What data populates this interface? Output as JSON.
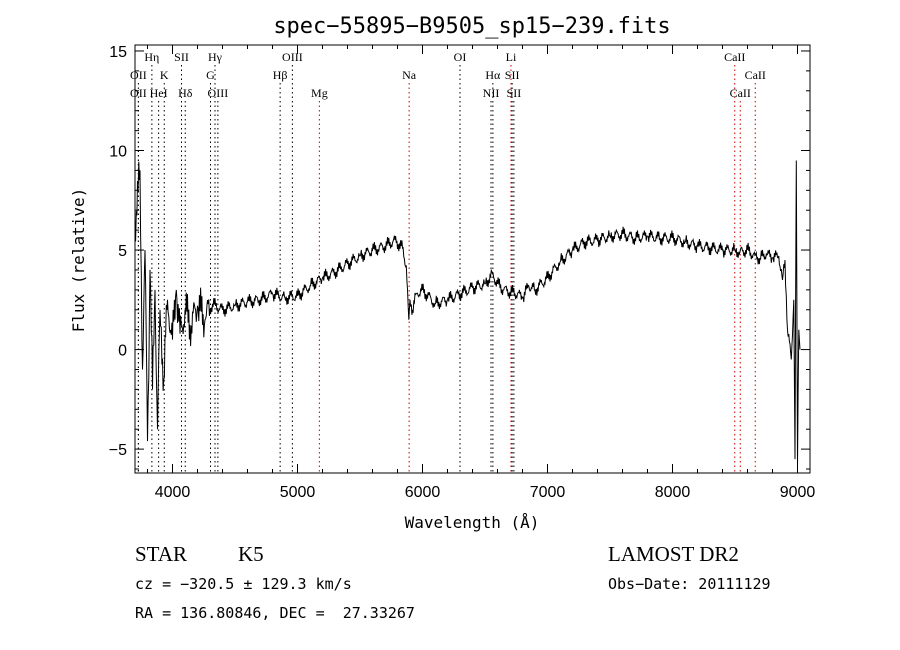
{
  "chart_data": {
    "type": "line",
    "title": "spec−55895−B9505_sp15−239.fits",
    "xlabel": "Wavelength (Å)",
    "ylabel": "Flux (relative)",
    "xlim": [
      3700,
      9100
    ],
    "ylim": [
      -6.2,
      15.3
    ],
    "x_ticks": [
      4000,
      5000,
      6000,
      7000,
      8000,
      9000
    ],
    "y_ticks": [
      -5,
      0,
      5,
      10,
      15
    ],
    "series": [
      {
        "color": "#000000",
        "x": [
          3700,
          3740,
          3760,
          3780,
          3800,
          3820,
          3840,
          3860,
          3880,
          3900,
          3930,
          3960,
          4000,
          4030,
          4060,
          4100,
          4150,
          4200,
          4260,
          4320,
          4400,
          4500,
          4600,
          4700,
          4800,
          4900,
          5000,
          5100,
          5200,
          5300,
          5400,
          5500,
          5600,
          5700,
          5780,
          5840,
          5870,
          5890,
          5900,
          5920,
          5950,
          6000,
          6100,
          6200,
          6300,
          6400,
          6500,
          6560,
          6600,
          6650,
          6700,
          6760,
          6800,
          6850,
          6900,
          7000,
          7100,
          7200,
          7300,
          7400,
          7500,
          7600,
          7700,
          7800,
          7900,
          8000,
          8100,
          8200,
          8300,
          8400,
          8500,
          8540,
          8600,
          8660,
          8700,
          8750,
          8800,
          8850,
          8880,
          8900,
          8920,
          8950,
          8970,
          8980,
          8990,
          9000,
          9010,
          9020
        ],
        "values": [
          6,
          9,
          -1,
          5,
          -4.6,
          4,
          -2,
          3,
          -4,
          2,
          -1.5,
          2.5,
          0.5,
          3,
          0.8,
          2,
          1.2,
          2.2,
          1.5,
          2.3,
          2,
          2.2,
          2.4,
          2.5,
          2.8,
          2.6,
          2.7,
          3.2,
          3.6,
          3.9,
          4.3,
          4.7,
          5,
          5.2,
          5.5,
          5.1,
          4.2,
          1.5,
          2.5,
          2.0,
          2.8,
          3.0,
          2.3,
          2.5,
          2.8,
          3.1,
          3.3,
          3.8,
          3.3,
          3.0,
          2.9,
          2.8,
          2.6,
          3.2,
          3.0,
          3.6,
          4.4,
          5.0,
          5.4,
          5.5,
          5.7,
          5.8,
          5.6,
          5.7,
          5.6,
          5.6,
          5.4,
          5.2,
          5.1,
          5.0,
          5.0,
          4.9,
          5.0,
          4.7,
          4.6,
          4.8,
          4.6,
          4.7,
          3.5,
          4.5,
          1.0,
          -0.5,
          2.5,
          -5.5,
          9.5,
          -5.9,
          1,
          0
        ]
      }
    ],
    "spectral_lines": [
      {
        "label": "OII",
        "x": 3727,
        "row": 1,
        "color": "#000000"
      },
      {
        "label": "OII",
        "x": 3727,
        "row": 2,
        "color": "#000000"
      },
      {
        "label": "Hη",
        "x": 3835,
        "row": 0,
        "color": "#000000"
      },
      {
        "label": "HeI",
        "x": 3889,
        "row": 2,
        "color": "#000000"
      },
      {
        "label": "K",
        "x": 3934,
        "row": 1,
        "color": "#000000"
      },
      {
        "label": "SII",
        "x": 4072,
        "row": 0,
        "color": "#000000"
      },
      {
        "label": "Hδ",
        "x": 4102,
        "row": 2,
        "color": "#000000"
      },
      {
        "label": "Hγ",
        "x": 4340,
        "row": 0,
        "color": "#000000"
      },
      {
        "label": "G",
        "x": 4304,
        "row": 1,
        "color": "#000000"
      },
      {
        "label": "OIII",
        "x": 4363,
        "row": 2,
        "color": "#000000"
      },
      {
        "label": "Hβ",
        "x": 4861,
        "row": 1,
        "color": "#000000"
      },
      {
        "label": "OIII",
        "x": 4959,
        "row": 0,
        "color": "#000000"
      },
      {
        "label": "Mg",
        "x": 5175,
        "row": 2,
        "color": "#cc0000"
      },
      {
        "label": "Na",
        "x": 5893,
        "row": 1,
        "color": "#cc0000"
      },
      {
        "label": "OI",
        "x": 6300,
        "row": 0,
        "color": "#000000"
      },
      {
        "label": "Hα",
        "x": 6563,
        "row": 1,
        "color": "#000000"
      },
      {
        "label": "NII",
        "x": 6548,
        "row": 2,
        "color": "#000000"
      },
      {
        "label": "Li",
        "x": 6708,
        "row": 0,
        "color": "#cc0000"
      },
      {
        "label": "SII",
        "x": 6717,
        "row": 1,
        "color": "#000000"
      },
      {
        "label": "SII",
        "x": 6731,
        "row": 2,
        "color": "#000000"
      },
      {
        "label": "CaII",
        "x": 8498,
        "row": 0,
        "color": "#cc0000"
      },
      {
        "label": "CaII",
        "x": 8542,
        "row": 2,
        "color": "#cc0000"
      },
      {
        "label": "CaII",
        "x": 8662,
        "row": 1,
        "color": "#cc0000"
      }
    ]
  },
  "info": {
    "object_class": "STAR",
    "subclass": "K5",
    "survey": "LAMOST DR2",
    "redshift": "cz = −320.5 ± 129.3 km/s",
    "obs_date": "Obs−Date: 20111129",
    "coords": "RA = 136.80846, DEC =  27.33267"
  }
}
